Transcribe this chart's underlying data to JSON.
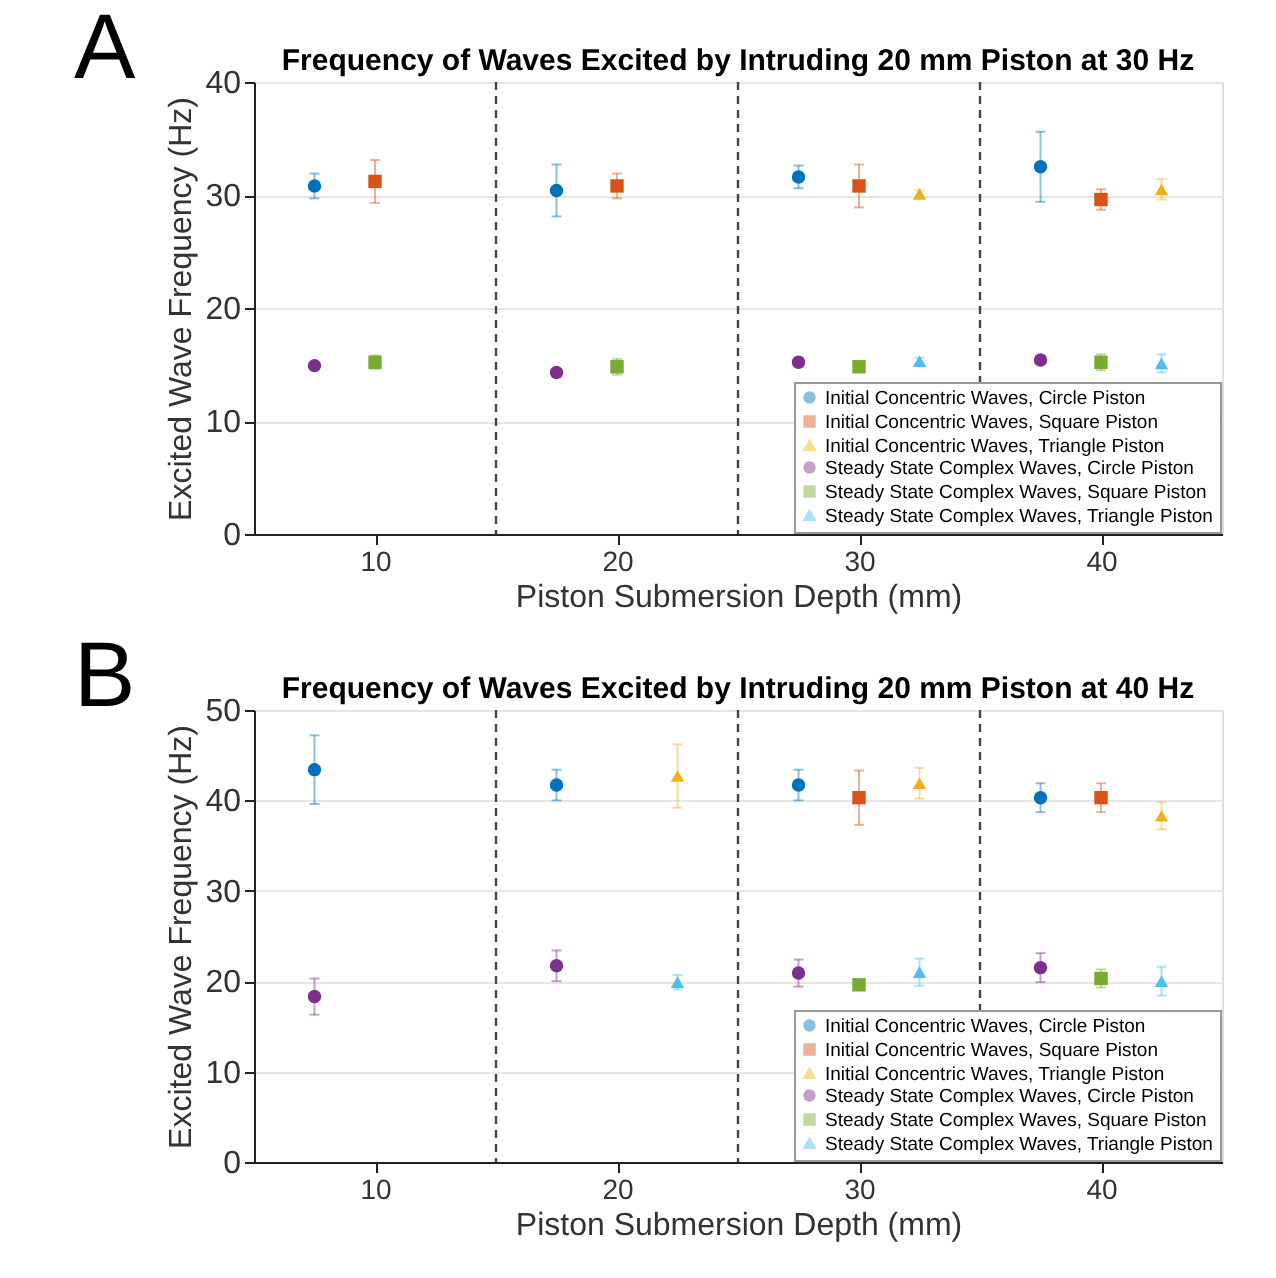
{
  "chart_data": [
    {
      "type": "scatter",
      "title": "Frequency of Waves Excited by Intruding 20 mm Piston at 30 Hz",
      "xlabel": "Piston Submersion Depth (mm)",
      "ylabel": "Excited Wave Frequency (Hz)",
      "annotations": [
        "A"
      ],
      "xlim": [
        5,
        45
      ],
      "xticks": [
        10,
        20,
        30,
        40
      ],
      "ylim": [
        0,
        40
      ],
      "yticks": [
        0,
        10,
        20,
        30,
        40
      ],
      "grid": "y",
      "legend": "bottom right",
      "ref_lines": [
        {
          "axis": "x",
          "value": 15,
          "color": "#444444",
          "line_style": "dashed"
        },
        {
          "axis": "x",
          "value": 25,
          "color": "#444444",
          "line_style": "dashed"
        },
        {
          "axis": "x",
          "value": 35,
          "color": "#444444",
          "line_style": "dashed"
        }
      ],
      "series": [
        {
          "name": "Initial Concentric Waves, Circle Piston",
          "color": "#0072bd",
          "marker": "circle",
          "x": [
            7.5,
            17.5,
            27.5,
            37.5
          ],
          "values": [
            30.8,
            30.4,
            31.6,
            32.5
          ],
          "errors": [
            1.1,
            2.3,
            1.0,
            3.1
          ]
        },
        {
          "name": "Initial Concentric Waves, Square Piston",
          "color": "#d95319",
          "marker": "square",
          "x": [
            10,
            20,
            30,
            40
          ],
          "values": [
            31.2,
            30.8,
            30.8,
            29.6
          ],
          "errors": [
            1.9,
            1.1,
            1.9,
            0.9
          ]
        },
        {
          "name": "Initial Concentric Waves, Triangle Piston",
          "color": "#edb120",
          "marker": "triangle",
          "x": [
            32.5,
            42.5
          ],
          "values": [
            30.1,
            30.5
          ],
          "errors": [
            0.3,
            0.9
          ]
        },
        {
          "name": "Steady State Complex Waves, Circle Piston",
          "color": "#7e2f8e",
          "marker": "circle",
          "x": [
            7.5,
            17.5,
            27.5,
            37.5
          ],
          "values": [
            14.9,
            14.3,
            15.2,
            15.4
          ],
          "errors": [
            0.3,
            0.3,
            0.4,
            0.3
          ]
        },
        {
          "name": "Steady State Complex Waves, Square Piston",
          "color": "#77ac30",
          "marker": "square",
          "x": [
            10,
            20,
            30,
            40
          ],
          "values": [
            15.2,
            14.8,
            14.8,
            15.2
          ],
          "errors": [
            0.6,
            0.7,
            0.4,
            0.7
          ]
        },
        {
          "name": "Steady State Complex Waves, Triangle Piston",
          "color": "#4dbeee",
          "marker": "triangle",
          "x": [
            32.5,
            42.5
          ],
          "values": [
            15.3,
            15.1
          ],
          "errors": [
            0.3,
            0.8
          ]
        }
      ]
    },
    {
      "type": "scatter",
      "title": "Frequency of Waves Excited by Intruding 20 mm Piston at 40 Hz",
      "xlabel": "Piston Submersion Depth (mm)",
      "ylabel": "Excited Wave Frequency (Hz)",
      "annotations": [
        "B"
      ],
      "xlim": [
        5,
        45
      ],
      "xticks": [
        10,
        20,
        30,
        40
      ],
      "ylim": [
        0,
        50
      ],
      "yticks": [
        0,
        10,
        20,
        30,
        40,
        50
      ],
      "grid": "y",
      "legend": "bottom right",
      "ref_lines": [
        {
          "axis": "x",
          "value": 15,
          "color": "#444444",
          "line_style": "dashed"
        },
        {
          "axis": "x",
          "value": 25,
          "color": "#444444",
          "line_style": "dashed"
        },
        {
          "axis": "x",
          "value": 35,
          "color": "#444444",
          "line_style": "dashed"
        }
      ],
      "series": [
        {
          "name": "Initial Concentric Waves, Circle Piston",
          "color": "#0072bd",
          "marker": "circle",
          "x": [
            7.5,
            17.5,
            27.5,
            37.5
          ],
          "values": [
            43.4,
            41.7,
            41.7,
            40.3
          ],
          "errors": [
            3.8,
            1.7,
            1.7,
            1.6
          ]
        },
        {
          "name": "Initial Concentric Waves, Square Piston",
          "color": "#d95319",
          "marker": "square",
          "x": [
            30,
            40
          ],
          "values": [
            40.3,
            40.3
          ],
          "errors": [
            3.0,
            1.6
          ]
        },
        {
          "name": "Initial Concentric Waves, Triangle Piston",
          "color": "#edb120",
          "marker": "triangle",
          "x": [
            22.5,
            32.5,
            42.5
          ],
          "values": [
            42.7,
            41.9,
            38.3
          ],
          "errors": [
            3.5,
            1.7,
            1.5
          ]
        },
        {
          "name": "Steady State Complex Waves, Circle Piston",
          "color": "#7e2f8e",
          "marker": "circle",
          "x": [
            7.5,
            17.5,
            27.5,
            37.5
          ],
          "values": [
            18.3,
            21.7,
            20.9,
            21.5
          ],
          "errors": [
            2.0,
            1.7,
            1.5,
            1.6
          ]
        },
        {
          "name": "Steady State Complex Waves, Square Piston",
          "color": "#77ac30",
          "marker": "square",
          "x": [
            30,
            40
          ],
          "values": [
            19.6,
            20.3
          ],
          "errors": [
            0.4,
            1.0
          ]
        },
        {
          "name": "Steady State Complex Waves, Triangle Piston",
          "color": "#4dbeee",
          "marker": "triangle",
          "x": [
            22.5,
            32.5,
            42.5
          ],
          "values": [
            19.9,
            21.0,
            20.0
          ],
          "errors": [
            0.8,
            1.5,
            1.6
          ]
        }
      ]
    }
  ]
}
